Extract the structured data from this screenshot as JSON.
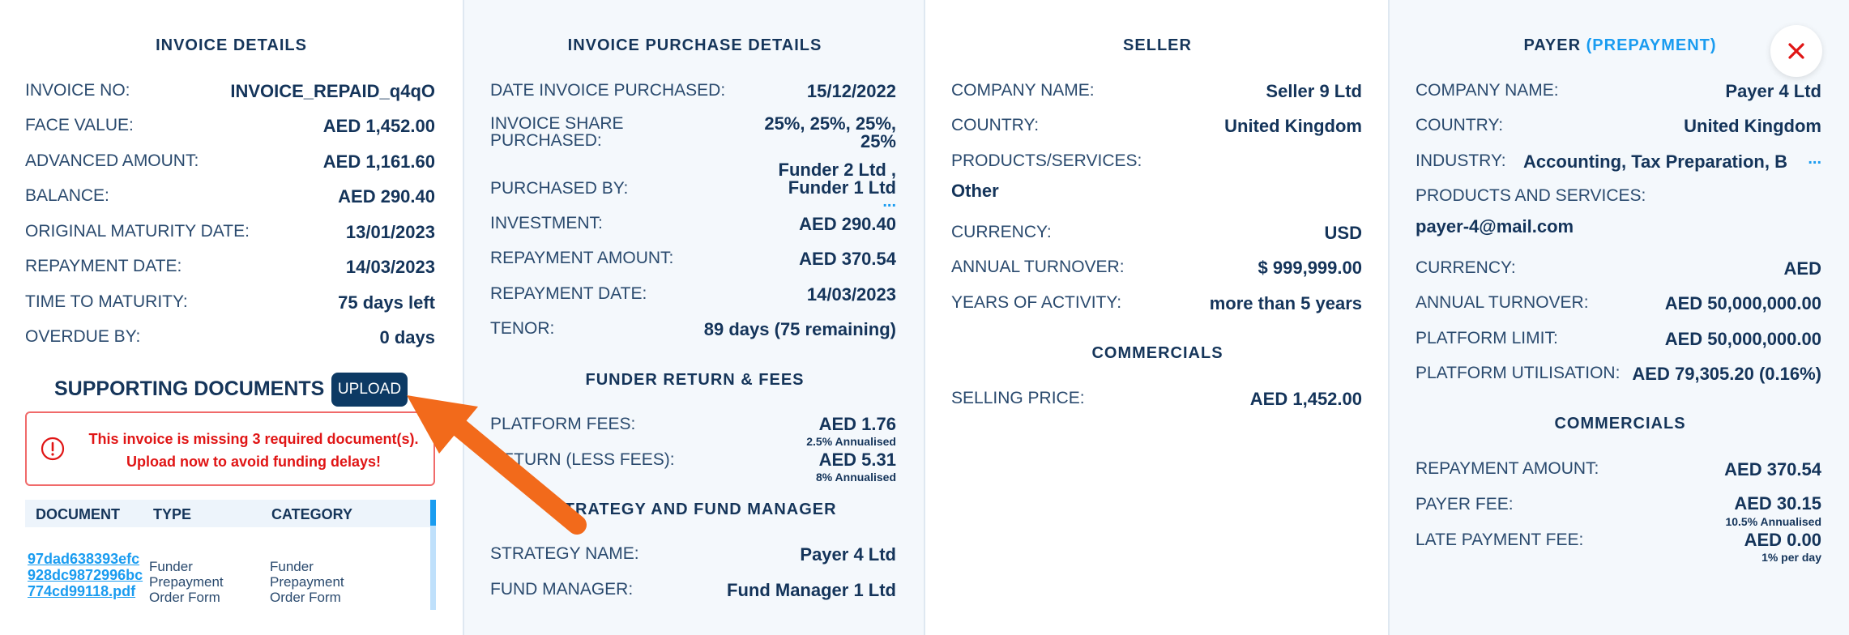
{
  "invoice_details": {
    "title": "INVOICE DETAILS",
    "rows": [
      {
        "label": "INVOICE NO:",
        "value": "INVOICE_REPAID_q4qO"
      },
      {
        "label": "FACE VALUE:",
        "value": "AED 1,452.00"
      },
      {
        "label": "ADVANCED AMOUNT:",
        "value": "AED 1,161.60"
      },
      {
        "label": "BALANCE:",
        "value": "AED 290.40"
      },
      {
        "label": "ORIGINAL MATURITY DATE:",
        "value": "13/01/2023"
      },
      {
        "label": "REPAYMENT DATE:",
        "value": "14/03/2023"
      },
      {
        "label": "TIME TO MATURITY:",
        "value": "75 days left"
      },
      {
        "label": "OVERDUE BY:",
        "value": "0 days"
      }
    ]
  },
  "supporting_documents": {
    "title": "SUPPORTING DOCUMENTS",
    "upload_label": "UPLOAD",
    "alert_line1": "This invoice is missing 3 required document(s).",
    "alert_line2": "Upload now to avoid funding delays!",
    "columns": [
      "DOCUMENT",
      "TYPE",
      "CATEGORY"
    ],
    "rows": [
      {
        "document": "97dad638393efc928dc9872996bc774cd99118.pdf",
        "type": "Funder Prepayment Order Form",
        "category": "Funder Prepayment Order Form"
      }
    ]
  },
  "purchase_details": {
    "title": "INVOICE PURCHASE DETAILS",
    "rows": [
      {
        "label": "DATE INVOICE PURCHASED:",
        "value": "15/12/2022"
      },
      {
        "label": "INVOICE SHARE PURCHASED:",
        "value": "25%, 25%, 25%, 25%"
      },
      {
        "label": "PURCHASED BY:",
        "value": "Funder 2 Ltd , Funder 1 Ltd"
      },
      {
        "label": "INVESTMENT:",
        "value": "AED 290.40"
      },
      {
        "label": "REPAYMENT AMOUNT:",
        "value": "AED 370.54"
      },
      {
        "label": "REPAYMENT DATE:",
        "value": "14/03/2023"
      },
      {
        "label": "TENOR:",
        "value": "89 days (75 remaining)"
      }
    ],
    "fees_title": "FUNDER RETURN & FEES",
    "fees": [
      {
        "label": "PLATFORM FEES:",
        "value": "AED 1.76",
        "sub": "2.5% Annualised"
      },
      {
        "label": "RETURN (LESS FEES):",
        "value": "AED 5.31",
        "sub": "8% Annualised"
      }
    ],
    "strategy_title": "STRATEGY AND FUND MANAGER",
    "strategy": [
      {
        "label": "STRATEGY NAME:",
        "value": "Payer 4 Ltd"
      },
      {
        "label": "FUND MANAGER:",
        "value": "Fund Manager 1 Ltd"
      }
    ]
  },
  "seller": {
    "title": "SELLER",
    "rows": [
      {
        "label": "COMPANY NAME:",
        "value": "Seller 9 Ltd"
      },
      {
        "label": "COUNTRY:",
        "value": "United Kingdom"
      },
      {
        "label": "PRODUCTS/SERVICES:",
        "value": "Other"
      },
      {
        "label": "CURRENCY:",
        "value": "USD"
      },
      {
        "label": "ANNUAL TURNOVER:",
        "value": "$ 999,999.00"
      },
      {
        "label": "YEARS OF ACTIVITY:",
        "value": "more than 5 years"
      }
    ],
    "commercials_title": "COMMERCIALS",
    "commercials": [
      {
        "label": "SELLING PRICE:",
        "value": "AED 1,452.00"
      }
    ]
  },
  "payer": {
    "title": "PAYER",
    "title_accent": "(PREPAYMENT)",
    "rows": [
      {
        "label": "COMPANY NAME:",
        "value": "Payer 4 Ltd"
      },
      {
        "label": "COUNTRY:",
        "value": "United Kingdom"
      },
      {
        "label": "INDUSTRY:",
        "value": "Accounting, Tax Preparation, B"
      },
      {
        "label": "PRODUCTS AND SERVICES:",
        "value": "payer-4@mail.com"
      },
      {
        "label": "CURRENCY:",
        "value": "AED"
      },
      {
        "label": "ANNUAL TURNOVER:",
        "value": "AED 50,000,000.00"
      },
      {
        "label": "PLATFORM LIMIT:",
        "value": "AED 50,000,000.00"
      },
      {
        "label": "PLATFORM UTILISATION:",
        "value": "AED 79,305.20 (0.16%)"
      }
    ],
    "commercials_title": "COMMERCIALS",
    "commercials": [
      {
        "label": "REPAYMENT AMOUNT:",
        "value": "AED 370.54"
      },
      {
        "label": "PAYER FEE:",
        "value": "AED 30.15",
        "sub": "10.5% Annualised"
      },
      {
        "label": "LATE PAYMENT FEE:",
        "value": "AED 0.00",
        "sub": "1% per day"
      }
    ],
    "ellipsis": "..."
  },
  "colors": {
    "accent": "#1a9cf0",
    "primary": "#0d3a64",
    "error": "#e01515",
    "arrow": "#f26a1b"
  }
}
